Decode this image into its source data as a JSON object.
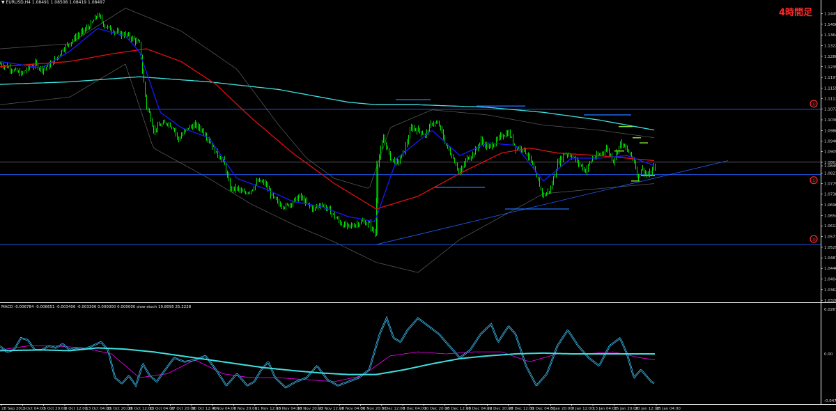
{
  "header": {
    "symbol_line": "EURUSD,H4  1.08491 1.08508 1.08419 1.08497",
    "period_label": "4時間足"
  },
  "indicator": {
    "label_line": "MACD -0.006784 -0.006651 -0.003406 -0.003306 0.000000 0.000000  slow-stoch 19.8095 25.2228"
  },
  "colors": {
    "background": "#000000",
    "candle": "#00e000",
    "ma_fast": "#1a1aff",
    "ma_mid": "#e01010",
    "ma_slow": "#40e0e0",
    "envelope": "#555555",
    "level_line": "#2060ff",
    "marker": "#ff3030",
    "stoch_main": "#40c8ff",
    "stoch_signal": "#ff00ff",
    "macd_line": "#40e0e0",
    "green_mark": "#a0ff30"
  },
  "chart_data": {
    "type": "line",
    "price_axis": {
      "ticks": [
        "1.14491",
        "1.14066",
        "1.13646",
        "1.13226",
        "1.12806",
        "1.12396",
        "1.11976",
        "1.11556",
        "1.11136",
        "1.10726",
        "1.10306",
        "1.09886",
        "1.09466",
        "1.09056",
        "1.08636",
        "1.08497",
        "1.08216",
        "1.07796",
        "1.07386",
        "1.06966",
        "1.06546",
        "1.06136",
        "1.05716",
        "1.05296",
        "1.04876",
        "1.04466",
        "1.04046",
        "1.03626",
        "1.03206"
      ],
      "ylim": [
        1.0321,
        1.1491
      ]
    },
    "indicator_axis": {
      "ticks": [
        "0.0267723",
        "0.00",
        "-0.0472527"
      ]
    },
    "x_ticks": [
      "28 Sep 2015",
      "1 Oct 04:00",
      "5 Oct 20:00",
      "8 Oct 12:00",
      "13 Oct 04:00",
      "15 Oct 20:00",
      "20 Oct 12:00",
      "23 Oct 04:00",
      "27 Oct 20:00",
      "30 Oct 12:00",
      "4 Nov 04:00",
      "6 Nov 20:00",
      "11 Nov 12:00",
      "16 Nov 04:00",
      "18 Nov 20:00",
      "23 Nov 12:00",
      "26 Nov 04:00",
      "30 Nov 20:00",
      "3 Dec 12:00",
      "8 Dec 04:00",
      "10 Dec 20:00",
      "15 Dec 12:00",
      "18 Dec 04:00",
      "22 Dec 20:00",
      "28 Dec 12:00",
      "31 Dec 04:00",
      "5 Jan 20:00",
      "8 Jan 12:00",
      "13 Jan 04:00",
      "15 Jan 20:00",
      "20 Jan 12:00",
      "25 Jan 04:00"
    ],
    "price_series": {
      "name": "EURUSD,H4",
      "points": [
        [
          0,
          1.125
        ],
        [
          10,
          1.124
        ],
        [
          20,
          1.1225
        ],
        [
          30,
          1.121
        ],
        [
          40,
          1.1235
        ],
        [
          50,
          1.125
        ],
        [
          60,
          1.123
        ],
        [
          70,
          1.1245
        ],
        [
          80,
          1.127
        ],
        [
          90,
          1.131
        ],
        [
          100,
          1.1335
        ],
        [
          110,
          1.136
        ],
        [
          120,
          1.138
        ],
        [
          130,
          1.1405
        ],
        [
          140,
          1.1445
        ],
        [
          150,
          1.14
        ],
        [
          160,
          1.1385
        ],
        [
          170,
          1.137
        ],
        [
          180,
          1.1365
        ],
        [
          190,
          1.135
        ],
        [
          200,
          1.133
        ],
        [
          205,
          1.12
        ],
        [
          210,
          1.108
        ],
        [
          215,
          1.105
        ],
        [
          220,
          1.099
        ],
        [
          230,
          1.101
        ],
        [
          240,
          1.102
        ],
        [
          250,
          1.0995
        ],
        [
          255,
          1.095
        ],
        [
          260,
          1.097
        ],
        [
          270,
          1.1
        ],
        [
          280,
          1.101
        ],
        [
          290,
          1.099
        ],
        [
          300,
          1.095
        ],
        [
          310,
          1.09
        ],
        [
          320,
          1.087
        ],
        [
          325,
          1.082
        ],
        [
          330,
          1.076
        ],
        [
          340,
          1.076
        ],
        [
          350,
          1.074
        ],
        [
          360,
          1.0755
        ],
        [
          370,
          1.079
        ],
        [
          380,
          1.078
        ],
        [
          390,
          1.073
        ],
        [
          400,
          1.07
        ],
        [
          410,
          1.069
        ],
        [
          420,
          1.071
        ],
        [
          430,
          1.073
        ],
        [
          440,
          1.07
        ],
        [
          450,
          1.068
        ],
        [
          460,
          1.07
        ],
        [
          470,
          1.068
        ],
        [
          480,
          1.065
        ],
        [
          490,
          1.062
        ],
        [
          500,
          1.061
        ],
        [
          510,
          1.062
        ],
        [
          520,
          1.063
        ],
        [
          530,
          1.062
        ],
        [
          538,
          1.058
        ],
        [
          542,
          1.086
        ],
        [
          550,
          1.096
        ],
        [
          560,
          1.088
        ],
        [
          570,
          1.086
        ],
        [
          580,
          1.091
        ],
        [
          590,
          1.1
        ],
        [
          600,
          1.099
        ],
        [
          610,
          1.097
        ],
        [
          620,
          1.102
        ],
        [
          630,
          1.101
        ],
        [
          640,
          1.093
        ],
        [
          650,
          1.088
        ],
        [
          660,
          1.082
        ],
        [
          670,
          1.088
        ],
        [
          680,
          1.09
        ],
        [
          690,
          1.095
        ],
        [
          700,
          1.092
        ],
        [
          710,
          1.094
        ],
        [
          720,
          1.097
        ],
        [
          730,
          1.098
        ],
        [
          740,
          1.092
        ],
        [
          750,
          1.092
        ],
        [
          760,
          1.088
        ],
        [
          770,
          1.08
        ],
        [
          780,
          1.073
        ],
        [
          790,
          1.076
        ],
        [
          800,
          1.086
        ],
        [
          810,
          1.09
        ],
        [
          820,
          1.089
        ],
        [
          830,
          1.086
        ],
        [
          840,
          1.083
        ],
        [
          850,
          1.088
        ],
        [
          860,
          1.089
        ],
        [
          870,
          1.092
        ],
        [
          880,
          1.087
        ],
        [
          890,
          1.094
        ],
        [
          900,
          1.091
        ],
        [
          910,
          1.087
        ],
        [
          915,
          1.08
        ],
        [
          920,
          1.084
        ],
        [
          930,
          1.081
        ],
        [
          940,
          1.085
        ]
      ]
    },
    "ma_fast": [
      [
        0,
        1.126
      ],
      [
        60,
        1.1235
      ],
      [
        100,
        1.13
      ],
      [
        140,
        1.139
      ],
      [
        180,
        1.136
      ],
      [
        200,
        1.13
      ],
      [
        230,
        1.106
      ],
      [
        260,
        1.1
      ],
      [
        300,
        1.096
      ],
      [
        340,
        1.08
      ],
      [
        380,
        1.076
      ],
      [
        420,
        1.071
      ],
      [
        460,
        1.069
      ],
      [
        500,
        1.065
      ],
      [
        538,
        1.063
      ],
      [
        570,
        1.088
      ],
      [
        620,
        1.099
      ],
      [
        660,
        1.089
      ],
      [
        700,
        1.094
      ],
      [
        740,
        1.093
      ],
      [
        780,
        1.079
      ],
      [
        820,
        1.088
      ],
      [
        860,
        1.088
      ],
      [
        900,
        1.089
      ],
      [
        940,
        1.085
      ]
    ],
    "ma_mid": [
      [
        0,
        1.124
      ],
      [
        100,
        1.126
      ],
      [
        160,
        1.129
      ],
      [
        210,
        1.131
      ],
      [
        260,
        1.126
      ],
      [
        310,
        1.117
      ],
      [
        360,
        1.104
      ],
      [
        420,
        1.09
      ],
      [
        480,
        1.078
      ],
      [
        540,
        1.068
      ],
      [
        600,
        1.073
      ],
      [
        660,
        1.082
      ],
      [
        720,
        1.09
      ],
      [
        760,
        1.092
      ],
      [
        800,
        1.09
      ],
      [
        860,
        1.089
      ],
      [
        940,
        1.087
      ]
    ],
    "ma_slow": [
      [
        0,
        1.117
      ],
      [
        100,
        1.118
      ],
      [
        200,
        1.12
      ],
      [
        300,
        1.118
      ],
      [
        400,
        1.115
      ],
      [
        500,
        1.11
      ],
      [
        540,
        1.109
      ],
      [
        600,
        1.109
      ],
      [
        700,
        1.108
      ],
      [
        780,
        1.106
      ],
      [
        860,
        1.103
      ],
      [
        940,
        1.099
      ]
    ],
    "envelope_upper": [
      [
        0,
        1.131
      ],
      [
        100,
        1.133
      ],
      [
        180,
        1.147
      ],
      [
        260,
        1.138
      ],
      [
        340,
        1.123
      ],
      [
        400,
        1.101
      ],
      [
        440,
        1.088
      ],
      [
        480,
        1.08
      ],
      [
        530,
        1.076
      ],
      [
        560,
        1.1
      ],
      [
        620,
        1.107
      ],
      [
        700,
        1.105
      ],
      [
        780,
        1.101
      ],
      [
        860,
        1.099
      ],
      [
        940,
        1.096
      ]
    ],
    "envelope_lower": [
      [
        0,
        1.109
      ],
      [
        100,
        1.112
      ],
      [
        180,
        1.125
      ],
      [
        220,
        1.092
      ],
      [
        300,
        1.08
      ],
      [
        360,
        1.07
      ],
      [
        420,
        1.062
      ],
      [
        480,
        1.055
      ],
      [
        540,
        1.047
      ],
      [
        600,
        1.043
      ],
      [
        660,
        1.056
      ],
      [
        720,
        1.065
      ],
      [
        780,
        1.074
      ],
      [
        860,
        1.076
      ],
      [
        940,
        1.078
      ]
    ],
    "horizontal_levels": [
      {
        "label": "①",
        "value": 1.1072
      },
      {
        "label": "②",
        "value": 1.0815
      },
      {
        "label": "③",
        "value": 1.054
      }
    ],
    "extra_levels": [
      1.0864
    ],
    "trendline": [
      [
        540,
        1.054
      ],
      [
        1045,
        1.087
      ]
    ],
    "stoch_main": [
      [
        0,
        0.2
      ],
      [
        10,
        0.05
      ],
      [
        20,
        0.1
      ],
      [
        30,
        0.4
      ],
      [
        40,
        0.35
      ],
      [
        50,
        0.1
      ],
      [
        60,
        0.1
      ],
      [
        70,
        0.2
      ],
      [
        80,
        0.15
      ],
      [
        90,
        0.25
      ],
      [
        100,
        0.1
      ],
      [
        110,
        0.15
      ],
      [
        120,
        0.12
      ],
      [
        130,
        0.18
      ],
      [
        145,
        0.3
      ],
      [
        155,
        0.1
      ],
      [
        165,
        -0.6
      ],
      [
        175,
        -0.75
      ],
      [
        185,
        -0.55
      ],
      [
        195,
        -0.8
      ],
      [
        205,
        -0.25
      ],
      [
        215,
        -0.55
      ],
      [
        225,
        -0.7
      ],
      [
        235,
        -0.45
      ],
      [
        250,
        -0.1
      ],
      [
        265,
        -0.2
      ],
      [
        280,
        -0.15
      ],
      [
        295,
        -0.05
      ],
      [
        310,
        -0.4
      ],
      [
        325,
        -0.8
      ],
      [
        340,
        -0.5
      ],
      [
        355,
        -0.8
      ],
      [
        365,
        -0.7
      ],
      [
        375,
        -0.4
      ],
      [
        385,
        -0.2
      ],
      [
        395,
        -0.6
      ],
      [
        410,
        -0.85
      ],
      [
        425,
        -0.7
      ],
      [
        440,
        -0.6
      ],
      [
        455,
        -0.3
      ],
      [
        470,
        -0.65
      ],
      [
        485,
        -0.8
      ],
      [
        500,
        -0.7
      ],
      [
        515,
        -0.6
      ],
      [
        530,
        -0.4
      ],
      [
        545,
        0.5
      ],
      [
        555,
        0.9
      ],
      [
        565,
        0.4
      ],
      [
        575,
        0.3
      ],
      [
        585,
        0.6
      ],
      [
        600,
        0.9
      ],
      [
        615,
        0.7
      ],
      [
        630,
        0.5
      ],
      [
        645,
        0.2
      ],
      [
        660,
        -0.1
      ],
      [
        675,
        0.1
      ],
      [
        690,
        0.5
      ],
      [
        705,
        0.75
      ],
      [
        715,
        0.3
      ],
      [
        730,
        0.7
      ],
      [
        740,
        0.5
      ],
      [
        755,
        -0.3
      ],
      [
        770,
        -0.8
      ],
      [
        785,
        -0.5
      ],
      [
        800,
        0.2
      ],
      [
        815,
        0.6
      ],
      [
        830,
        0.2
      ],
      [
        845,
        -0.1
      ],
      [
        860,
        -0.3
      ],
      [
        875,
        0.2
      ],
      [
        890,
        0.4
      ],
      [
        900,
        0.0
      ],
      [
        910,
        -0.6
      ],
      [
        920,
        -0.4
      ],
      [
        935,
        -0.7
      ],
      [
        940,
        -0.75
      ]
    ],
    "stoch_signal": [
      [
        0,
        0.1
      ],
      [
        40,
        0.2
      ],
      [
        80,
        0.2
      ],
      [
        120,
        0.15
      ],
      [
        160,
        0.0
      ],
      [
        200,
        -0.6
      ],
      [
        240,
        -0.5
      ],
      [
        280,
        -0.15
      ],
      [
        320,
        -0.5
      ],
      [
        360,
        -0.6
      ],
      [
        400,
        -0.6
      ],
      [
        440,
        -0.65
      ],
      [
        480,
        -0.7
      ],
      [
        520,
        -0.55
      ],
      [
        560,
        -0.05
      ],
      [
        600,
        0.05
      ],
      [
        640,
        0.0
      ],
      [
        680,
        0.05
      ],
      [
        720,
        0.05
      ],
      [
        760,
        -0.2
      ],
      [
        800,
        0.0
      ],
      [
        840,
        0.0
      ],
      [
        880,
        0.05
      ],
      [
        920,
        -0.1
      ],
      [
        940,
        -0.15
      ]
    ],
    "macd_line": [
      [
        0,
        0.08
      ],
      [
        60,
        0.1
      ],
      [
        100,
        0.08
      ],
      [
        140,
        0.15
      ],
      [
        180,
        0.12
      ],
      [
        220,
        0.05
      ],
      [
        260,
        -0.05
      ],
      [
        300,
        -0.15
      ],
      [
        340,
        -0.25
      ],
      [
        380,
        -0.35
      ],
      [
        420,
        -0.42
      ],
      [
        460,
        -0.48
      ],
      [
        500,
        -0.52
      ],
      [
        540,
        -0.52
      ],
      [
        580,
        -0.4
      ],
      [
        620,
        -0.25
      ],
      [
        660,
        -0.12
      ],
      [
        700,
        -0.05
      ],
      [
        740,
        0.0
      ],
      [
        780,
        0.02
      ],
      [
        820,
        0.0
      ],
      [
        860,
        0.0
      ],
      [
        900,
        0.0
      ],
      [
        940,
        0.0
      ]
    ]
  }
}
